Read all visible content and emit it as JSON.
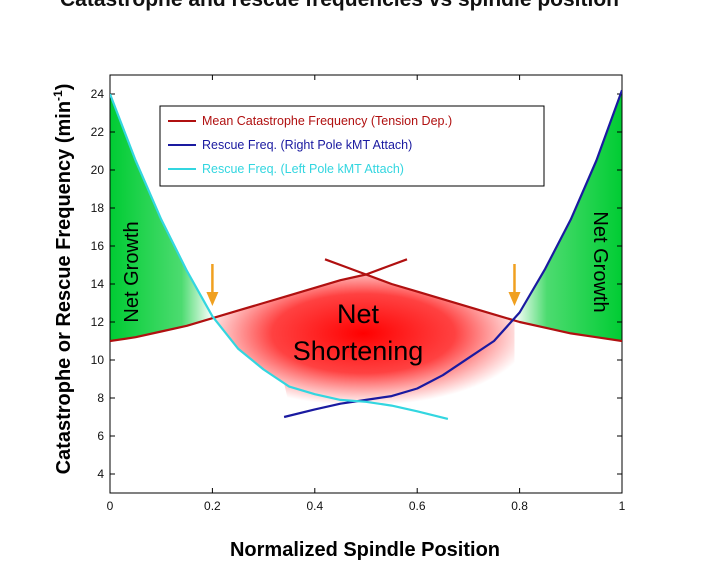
{
  "chart_data": {
    "type": "line",
    "title": "",
    "xlabel": "Normalized Spindle Position",
    "ylabel": "Catastrophe or Rescue Frequency (min",
    "ylabel_superscript": "-1",
    "ylabel_close": ")",
    "xlim": [
      0,
      1
    ],
    "ylim": [
      3,
      25
    ],
    "x_ticks": [
      0,
      0.2,
      0.4,
      0.6,
      0.8,
      1
    ],
    "x_tick_labels": [
      "0",
      "0.2",
      "0.4",
      "0.6",
      "0.8",
      "1"
    ],
    "y_ticks": [
      4,
      6,
      8,
      10,
      12,
      14,
      16,
      18,
      20,
      22,
      24
    ],
    "y_tick_labels": [
      "4",
      "6",
      "8",
      "10",
      "12",
      "14",
      "16",
      "18",
      "20",
      "22",
      "24"
    ],
    "grid": false,
    "legend_position": "top-center",
    "series": [
      {
        "name": "Mean Catastrophe Frequency (Tension Dep.)",
        "color": "#b01010",
        "x": [
          0,
          0.05,
          0.1,
          0.15,
          0.2,
          0.25,
          0.3,
          0.35,
          0.4,
          0.45,
          0.5,
          0.55,
          0.6,
          0.65,
          0.7,
          0.75,
          0.8,
          0.85,
          0.9,
          0.95,
          1
        ],
        "y": [
          11.0,
          11.2,
          11.5,
          11.8,
          12.2,
          12.6,
          13.0,
          13.4,
          13.8,
          14.2,
          14.5,
          14.0,
          13.6,
          13.2,
          12.8,
          12.4,
          12.0,
          11.7,
          11.4,
          11.2,
          11.0
        ]
      },
      {
        "name": "Mean Catastrophe Frequency (Tension Dep.) extension",
        "color": "#b01010",
        "x": [
          0.42,
          0.46,
          0.5,
          0.54,
          0.58
        ],
        "y": [
          15.3,
          14.9,
          14.5,
          14.9,
          15.3
        ]
      },
      {
        "name": "Rescue Freq. (Right Pole kMT Attach)",
        "color": "#1a1aa0",
        "x": [
          0.34,
          0.4,
          0.45,
          0.5,
          0.55,
          0.6,
          0.65,
          0.7,
          0.75,
          0.8,
          0.85,
          0.9,
          0.95,
          1
        ],
        "y": [
          7.0,
          7.4,
          7.7,
          7.9,
          8.1,
          8.5,
          9.2,
          10.1,
          11.0,
          12.5,
          14.8,
          17.4,
          20.5,
          24.2
        ]
      },
      {
        "name": "Rescue Freq. (Left Pole kMT Attach)",
        "color": "#33d6e0",
        "x": [
          0,
          0.05,
          0.1,
          0.15,
          0.2,
          0.25,
          0.3,
          0.35,
          0.4,
          0.45,
          0.5,
          0.55,
          0.6,
          0.66
        ],
        "y": [
          24.0,
          20.5,
          17.4,
          14.7,
          12.3,
          10.6,
          9.5,
          8.6,
          8.2,
          7.9,
          7.8,
          7.6,
          7.3,
          6.9
        ]
      }
    ],
    "region_labels": [
      {
        "text": "Net Growth",
        "side": "left"
      },
      {
        "text": "Net Growth",
        "side": "right"
      },
      {
        "text": "Net",
        "line": 1
      },
      {
        "text": "Shortening",
        "line": 2
      }
    ],
    "arrows": [
      {
        "x": 0.2,
        "color": "#f0a020"
      },
      {
        "x": 0.79,
        "color": "#f0a020"
      }
    ],
    "colors": {
      "growth_fill": "#00cc33",
      "shortening_fill": "#ff1111",
      "arrow": "#f0a020"
    }
  },
  "top_cut_text": "Catastrophe and rescue frequencies vs spindle position"
}
